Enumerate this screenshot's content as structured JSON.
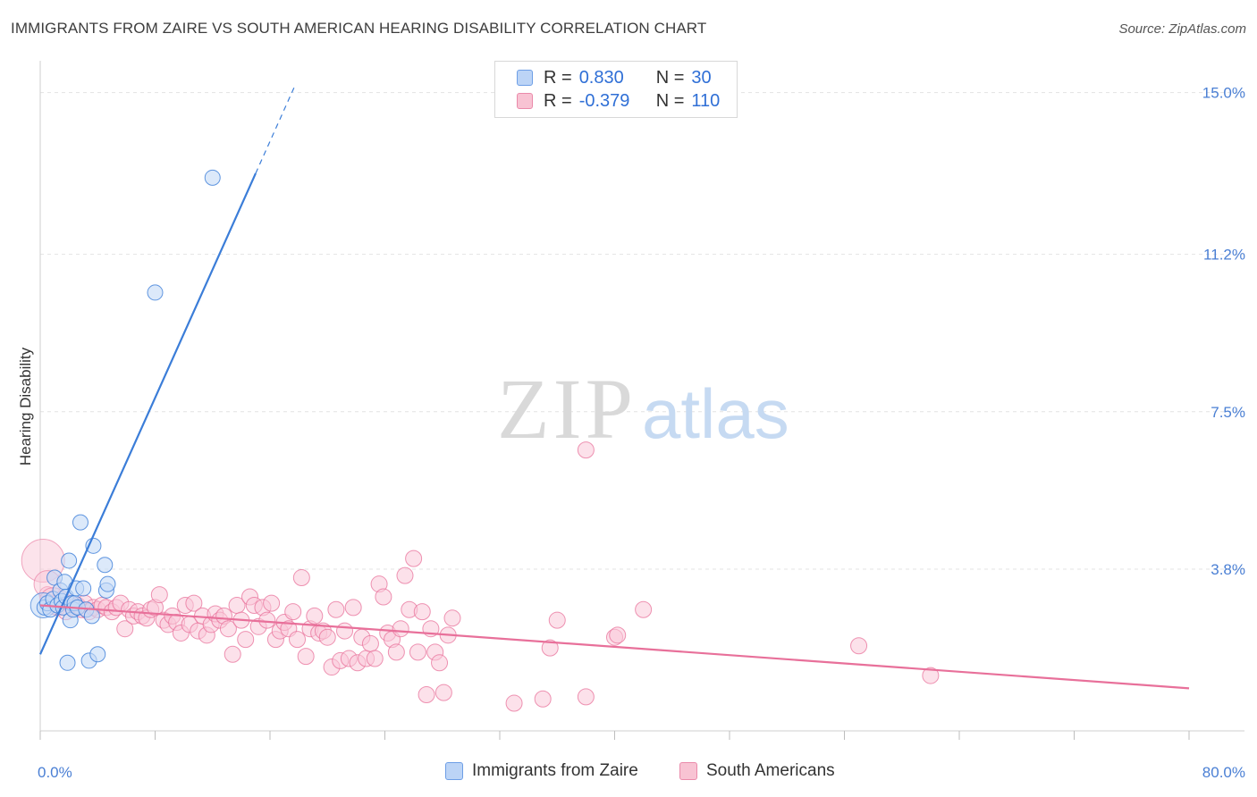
{
  "title": "IMMIGRANTS FROM ZAIRE VS SOUTH AMERICAN HEARING DISABILITY CORRELATION CHART",
  "source": "Source: ZipAtlas.com",
  "watermark": {
    "zip": "ZIP",
    "atlas": "atlas"
  },
  "legend": {
    "r_label": "R =",
    "n_label": "N =",
    "series1": {
      "r": "0.830",
      "n": "30"
    },
    "series2": {
      "r": "-0.379",
      "n": "110"
    }
  },
  "colors": {
    "blue": "#3b7dd8",
    "blue_fill": "#c5daf7",
    "pink": "#e8709a",
    "pink_fill": "#f9c8d8",
    "axis_text": "#4a7fd4"
  },
  "chart_data": {
    "type": "scatter",
    "title": "IMMIGRANTS FROM ZAIRE VS SOUTH AMERICAN HEARING DISABILITY CORRELATION CHART",
    "xlabel": "",
    "ylabel": "Hearing Disability",
    "xlim": [
      0,
      80
    ],
    "ylim": [
      0,
      15.6
    ],
    "x_tick_labels": [
      "0.0%",
      "80.0%"
    ],
    "y_ticks": [
      3.8,
      7.5,
      11.2,
      15.0
    ],
    "y_tick_labels": [
      "3.8%",
      "7.5%",
      "11.2%",
      "15.0%"
    ],
    "grid": "horizontal-dashed",
    "legend_position": "top-center",
    "series": [
      {
        "name": "Immigrants from Zaire",
        "r": 0.83,
        "n": 30,
        "trend": {
          "x0": 0,
          "y0": 1.8,
          "x1": 15.0,
          "y1": 13.1,
          "dash_to_x": 17.8
        },
        "points": [
          [
            0.3,
            2.9
          ],
          [
            0.5,
            3.0
          ],
          [
            0.7,
            2.85
          ],
          [
            0.9,
            3.1
          ],
          [
            1.0,
            3.6
          ],
          [
            1.2,
            2.95
          ],
          [
            1.4,
            3.3
          ],
          [
            1.5,
            3.05
          ],
          [
            1.6,
            2.9
          ],
          [
            1.7,
            3.5
          ],
          [
            1.8,
            3.15
          ],
          [
            1.9,
            1.6
          ],
          [
            2.0,
            4.0
          ],
          [
            2.1,
            2.6
          ],
          [
            2.2,
            3.0
          ],
          [
            2.3,
            2.85
          ],
          [
            2.4,
            3.0
          ],
          [
            2.5,
            3.35
          ],
          [
            2.6,
            2.9
          ],
          [
            2.8,
            4.9
          ],
          [
            3.0,
            3.35
          ],
          [
            3.2,
            2.85
          ],
          [
            3.4,
            1.65
          ],
          [
            3.6,
            2.7
          ],
          [
            3.7,
            4.35
          ],
          [
            4.0,
            1.8
          ],
          [
            4.5,
            3.9
          ],
          [
            4.6,
            3.3
          ],
          [
            4.7,
            3.45
          ],
          [
            8.0,
            10.3
          ],
          [
            12.0,
            13.0
          ]
        ],
        "big_point": [
          0.2,
          2.95
        ]
      },
      {
        "name": "South Americans",
        "r": -0.379,
        "n": 110,
        "trend": {
          "x0": 0,
          "y0": 2.95,
          "x1": 80,
          "y1": 1.0
        },
        "points": [
          [
            0.5,
            3.2
          ],
          [
            0.9,
            3.0
          ],
          [
            1.2,
            2.9
          ],
          [
            1.5,
            3.1
          ],
          [
            1.8,
            2.8
          ],
          [
            2.0,
            3.0
          ],
          [
            2.3,
            2.9
          ],
          [
            2.6,
            2.95
          ],
          [
            2.9,
            2.85
          ],
          [
            3.1,
            3.0
          ],
          [
            3.4,
            2.8
          ],
          [
            3.7,
            2.9
          ],
          [
            4.0,
            2.85
          ],
          [
            4.3,
            2.95
          ],
          [
            4.6,
            2.9
          ],
          [
            5.0,
            2.8
          ],
          [
            5.3,
            2.9
          ],
          [
            5.6,
            3.0
          ],
          [
            5.9,
            2.4
          ],
          [
            6.2,
            2.85
          ],
          [
            6.5,
            2.7
          ],
          [
            6.8,
            2.8
          ],
          [
            7.1,
            2.7
          ],
          [
            7.4,
            2.65
          ],
          [
            7.7,
            2.85
          ],
          [
            8.0,
            2.9
          ],
          [
            8.3,
            3.2
          ],
          [
            8.6,
            2.6
          ],
          [
            8.9,
            2.5
          ],
          [
            9.2,
            2.7
          ],
          [
            9.5,
            2.55
          ],
          [
            9.8,
            2.3
          ],
          [
            10.1,
            2.95
          ],
          [
            10.4,
            2.5
          ],
          [
            10.7,
            3.0
          ],
          [
            11.0,
            2.35
          ],
          [
            11.3,
            2.7
          ],
          [
            11.6,
            2.25
          ],
          [
            11.9,
            2.5
          ],
          [
            12.2,
            2.75
          ],
          [
            12.5,
            2.6
          ],
          [
            12.8,
            2.7
          ],
          [
            13.1,
            2.4
          ],
          [
            13.4,
            1.8
          ],
          [
            13.7,
            2.95
          ],
          [
            14.0,
            2.6
          ],
          [
            14.3,
            2.15
          ],
          [
            14.6,
            3.15
          ],
          [
            14.9,
            2.95
          ],
          [
            15.2,
            2.45
          ],
          [
            15.5,
            2.9
          ],
          [
            15.8,
            2.6
          ],
          [
            16.1,
            3.0
          ],
          [
            16.4,
            2.15
          ],
          [
            16.7,
            2.35
          ],
          [
            17.0,
            2.55
          ],
          [
            17.3,
            2.4
          ],
          [
            17.6,
            2.8
          ],
          [
            17.9,
            2.15
          ],
          [
            18.2,
            3.6
          ],
          [
            18.5,
            1.75
          ],
          [
            18.8,
            2.4
          ],
          [
            19.1,
            2.7
          ],
          [
            19.4,
            2.3
          ],
          [
            19.7,
            2.35
          ],
          [
            20.0,
            2.2
          ],
          [
            20.3,
            1.5
          ],
          [
            20.6,
            2.85
          ],
          [
            20.9,
            1.65
          ],
          [
            21.2,
            2.35
          ],
          [
            21.5,
            1.7
          ],
          [
            21.8,
            2.9
          ],
          [
            22.1,
            1.6
          ],
          [
            22.4,
            2.2
          ],
          [
            22.7,
            1.7
          ],
          [
            23.0,
            2.05
          ],
          [
            23.3,
            1.7
          ],
          [
            23.6,
            3.45
          ],
          [
            23.9,
            3.15
          ],
          [
            24.2,
            2.3
          ],
          [
            24.5,
            2.15
          ],
          [
            24.8,
            1.85
          ],
          [
            25.1,
            2.4
          ],
          [
            25.4,
            3.65
          ],
          [
            25.7,
            2.85
          ],
          [
            26.0,
            4.05
          ],
          [
            26.3,
            1.85
          ],
          [
            26.6,
            2.8
          ],
          [
            26.9,
            0.85
          ],
          [
            27.2,
            2.4
          ],
          [
            27.5,
            1.85
          ],
          [
            27.8,
            1.6
          ],
          [
            28.1,
            0.9
          ],
          [
            28.4,
            2.25
          ],
          [
            28.7,
            2.65
          ],
          [
            33.0,
            0.65
          ],
          [
            35.0,
            0.75
          ],
          [
            35.5,
            1.95
          ],
          [
            36.0,
            2.6
          ],
          [
            38.0,
            0.8
          ],
          [
            40.0,
            2.2
          ],
          [
            40.2,
            2.25
          ],
          [
            42.0,
            2.85
          ],
          [
            57.0,
            2.0
          ],
          [
            62.0,
            1.3
          ],
          [
            38.0,
            6.6
          ]
        ],
        "big_points": [
          [
            0.2,
            4.0
          ],
          [
            0.5,
            3.45
          ],
          [
            0.9,
            3.05
          ]
        ]
      }
    ]
  },
  "bottom_legend": [
    {
      "label": "Immigrants from Zaire",
      "color": "blue"
    },
    {
      "label": "South Americans",
      "color": "pink"
    }
  ]
}
